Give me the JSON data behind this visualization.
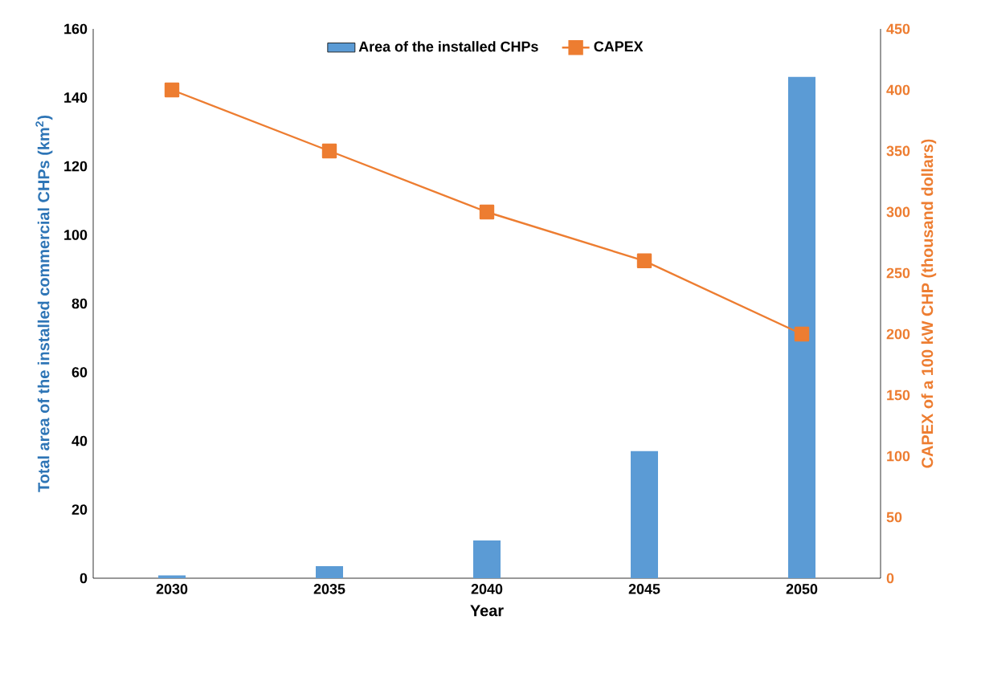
{
  "chart_data": {
    "type": "bar",
    "categories": [
      "2030",
      "2035",
      "2040",
      "2045",
      "2050"
    ],
    "xlabel": "Year",
    "ylabel": "Total area of the installed commercial CHPs (km$^{2}$)",
    "y2label": "CAPEX of a 100 kW CHP (thousand dollars)",
    "ylim": [
      0,
      160
    ],
    "yticks": [
      0,
      20,
      40,
      60,
      80,
      100,
      120,
      140,
      160
    ],
    "y2lim": [
      0,
      450
    ],
    "y2ticks": [
      0,
      50,
      100,
      150,
      200,
      250,
      300,
      350,
      400,
      450
    ],
    "legend": "top",
    "grid": false,
    "series": [
      {
        "name": "Area of the installed CHPs",
        "color": "#5b9bd5",
        "values": [
          0.8,
          3.5,
          11,
          37,
          146
        ]
      },
      {
        "name": "CAPEX",
        "type": "line",
        "axis": "y2",
        "color": "#ed7d31",
        "marker": "square",
        "values": [
          400,
          350,
          300,
          260,
          200
        ]
      }
    ]
  }
}
